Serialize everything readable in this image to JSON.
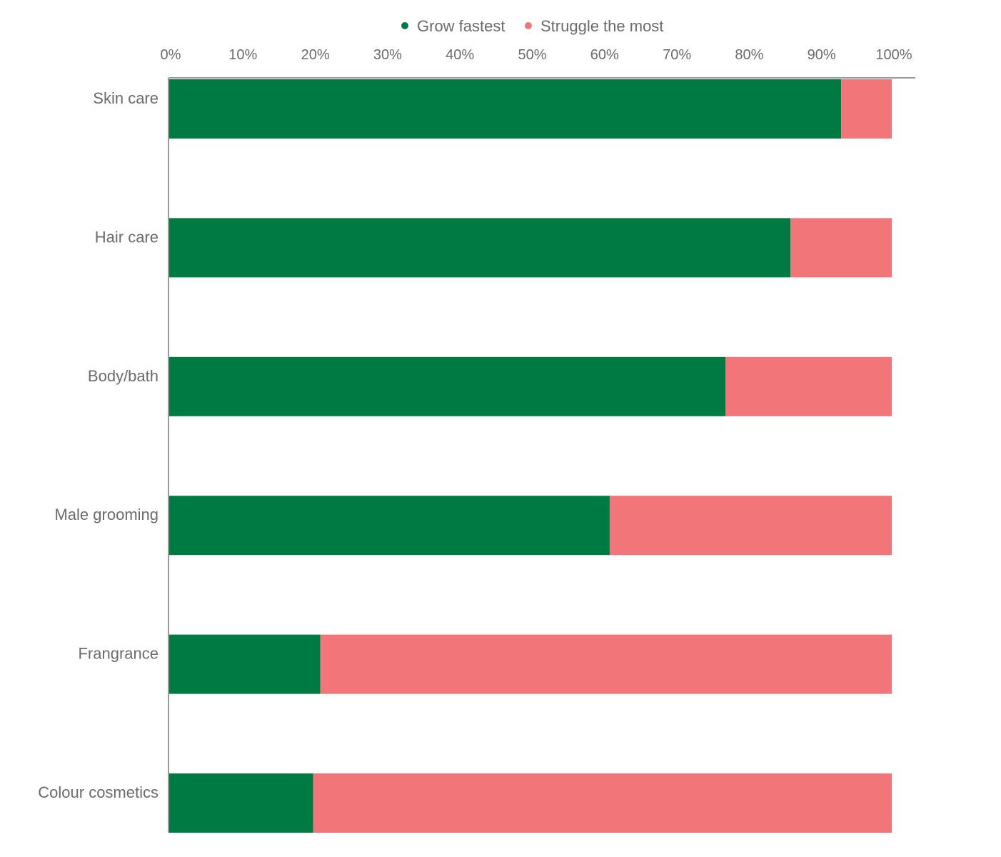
{
  "chart_data": {
    "type": "bar",
    "orientation": "horizontal",
    "stacked": true,
    "categories": [
      "Skin care",
      "Hair care",
      "Body/bath",
      "Male grooming",
      "Frangrance",
      "Colour cosmetics"
    ],
    "series": [
      {
        "name": "Grow fastest",
        "color": "#007a43",
        "values": [
          93,
          86,
          77,
          61,
          21,
          20
        ]
      },
      {
        "name": "Struggle the most",
        "color": "#f27679",
        "values": [
          7,
          14,
          23,
          39,
          79,
          80
        ]
      }
    ],
    "x_ticks": [
      "0%",
      "10%",
      "20%",
      "30%",
      "40%",
      "50%",
      "60%",
      "70%",
      "80%",
      "90%",
      "100%"
    ],
    "xlim": [
      0,
      100
    ],
    "x_axis_position": "top",
    "legend_position": "top-center",
    "grid": false,
    "axis_color": "#9a9a9a",
    "text_color": "#6b6b6b"
  }
}
